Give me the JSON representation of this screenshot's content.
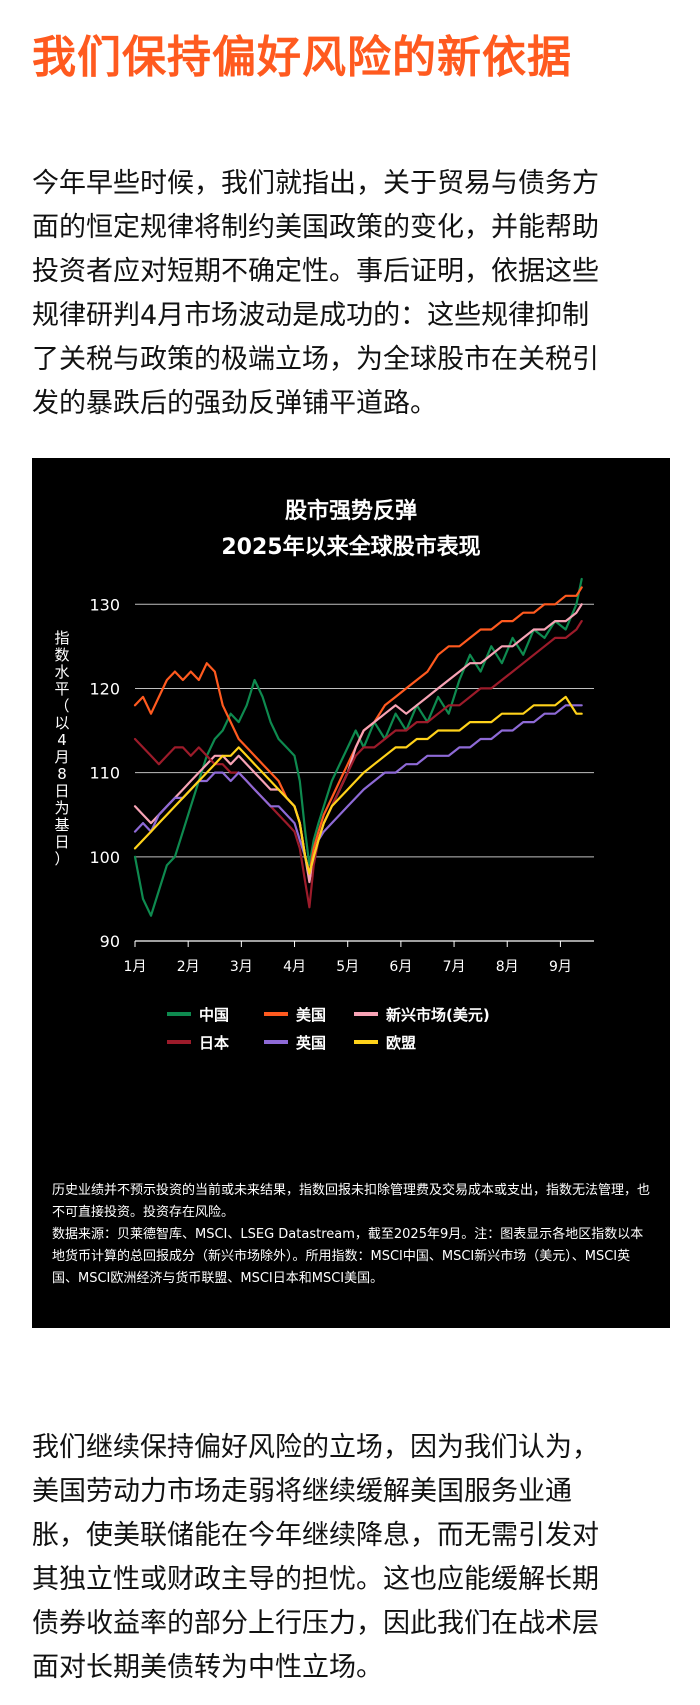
{
  "headline": "我们保持偏好风险的新依据",
  "intro_lines": [
    "今年早些时候，我们就指出，关于贸易与债务方",
    "面的恒定规律将制约美国政策的变化，并能帮助",
    "投资者应对短期不确定性。事后证明，依据这些",
    "规律研判4月市场波动是成功的：这些规律抑制",
    "了关税与政策的极端立场，为全球股市在关税引",
    "发的暴跌后的强劲反弹铺平道路。"
  ],
  "chart_data": {
    "type": "line",
    "title": "股市强势反弹",
    "subtitle": "2025年以来全球股市表现",
    "ylabel": "指数水平（以4月8日为基日）",
    "ylim": [
      90,
      133
    ],
    "xlim": [
      0,
      8.5
    ],
    "yticks": [
      90,
      100,
      110,
      120,
      130
    ],
    "xtick_labels": [
      "1月",
      "2月",
      "3月",
      "4月",
      "5月",
      "6月",
      "7月",
      "8月",
      "9月"
    ],
    "legend_position": "bottom",
    "series": [
      {
        "name": "中国",
        "color": "#0e8a4f",
        "x": [
          0,
          0.15,
          0.3,
          0.45,
          0.6,
          0.75,
          0.9,
          1.05,
          1.2,
          1.35,
          1.5,
          1.65,
          1.8,
          1.95,
          2.1,
          2.25,
          2.4,
          2.55,
          2.7,
          2.85,
          3.0,
          3.1,
          3.2,
          3.28,
          3.36,
          3.45,
          3.55,
          3.7,
          3.85,
          4.0,
          4.15,
          4.3,
          4.5,
          4.7,
          4.9,
          5.1,
          5.3,
          5.5,
          5.7,
          5.9,
          6.1,
          6.3,
          6.5,
          6.7,
          6.9,
          7.1,
          7.3,
          7.5,
          7.7,
          7.9,
          8.1,
          8.3,
          8.4
        ],
        "values": [
          100,
          95,
          93,
          96,
          99,
          100,
          103,
          106,
          109,
          112,
          114,
          115,
          117,
          116,
          118,
          121,
          119,
          116,
          114,
          113,
          112,
          109,
          103,
          99,
          102,
          104,
          106,
          109,
          111,
          113,
          115,
          113,
          116,
          114,
          117,
          115,
          118,
          116,
          119,
          117,
          121,
          124,
          122,
          125,
          123,
          126,
          124,
          127,
          126,
          128,
          127,
          130,
          133
        ]
      },
      {
        "name": "美国",
        "color": "#ff5a1f",
        "x": [
          0,
          0.15,
          0.3,
          0.45,
          0.6,
          0.75,
          0.9,
          1.05,
          1.2,
          1.35,
          1.5,
          1.65,
          1.8,
          1.95,
          2.1,
          2.25,
          2.4,
          2.55,
          2.7,
          2.85,
          3.0,
          3.1,
          3.2,
          3.28,
          3.36,
          3.45,
          3.55,
          3.7,
          3.85,
          4.0,
          4.15,
          4.3,
          4.5,
          4.7,
          4.9,
          5.1,
          5.3,
          5.5,
          5.7,
          5.9,
          6.1,
          6.3,
          6.5,
          6.7,
          6.9,
          7.1,
          7.3,
          7.5,
          7.7,
          7.9,
          8.1,
          8.3,
          8.4
        ],
        "values": [
          118,
          119,
          117,
          119,
          121,
          122,
          121,
          122,
          121,
          123,
          122,
          118,
          116,
          114,
          113,
          112,
          111,
          110,
          109,
          107,
          106,
          104,
          100,
          98,
          101,
          103,
          105,
          107,
          109,
          111,
          113,
          115,
          116,
          118,
          119,
          120,
          121,
          122,
          124,
          125,
          125,
          126,
          127,
          127,
          128,
          128,
          129,
          129,
          130,
          130,
          131,
          131,
          132
        ]
      },
      {
        "name": "新兴市场(美元)",
        "color": "#f7a3b5",
        "x": [
          0,
          0.15,
          0.3,
          0.45,
          0.6,
          0.75,
          0.9,
          1.05,
          1.2,
          1.35,
          1.5,
          1.65,
          1.8,
          1.95,
          2.1,
          2.25,
          2.4,
          2.55,
          2.7,
          2.85,
          3.0,
          3.1,
          3.2,
          3.28,
          3.36,
          3.45,
          3.55,
          3.7,
          3.85,
          4.0,
          4.15,
          4.3,
          4.5,
          4.7,
          4.9,
          5.1,
          5.3,
          5.5,
          5.7,
          5.9,
          6.1,
          6.3,
          6.5,
          6.7,
          6.9,
          7.1,
          7.3,
          7.5,
          7.7,
          7.9,
          8.1,
          8.3,
          8.4
        ],
        "values": [
          106,
          105,
          104,
          105,
          106,
          107,
          108,
          109,
          110,
          111,
          112,
          112,
          111,
          112,
          111,
          110,
          109,
          108,
          108,
          107,
          106,
          104,
          100,
          97,
          100,
          102,
          104,
          106,
          108,
          110,
          113,
          115,
          116,
          117,
          118,
          117,
          118,
          119,
          120,
          121,
          122,
          123,
          123,
          124,
          125,
          125,
          126,
          127,
          127,
          128,
          128,
          129,
          130
        ]
      },
      {
        "name": "日本",
        "color": "#9c1b2a",
        "x": [
          0,
          0.15,
          0.3,
          0.45,
          0.6,
          0.75,
          0.9,
          1.05,
          1.2,
          1.35,
          1.5,
          1.65,
          1.8,
          1.95,
          2.1,
          2.25,
          2.4,
          2.55,
          2.7,
          2.85,
          3.0,
          3.1,
          3.2,
          3.28,
          3.36,
          3.45,
          3.55,
          3.7,
          3.85,
          4.0,
          4.15,
          4.3,
          4.5,
          4.7,
          4.9,
          5.1,
          5.3,
          5.5,
          5.7,
          5.9,
          6.1,
          6.3,
          6.5,
          6.7,
          6.9,
          7.1,
          7.3,
          7.5,
          7.7,
          7.9,
          8.1,
          8.3,
          8.4
        ],
        "values": [
          114,
          113,
          112,
          111,
          112,
          113,
          113,
          112,
          113,
          112,
          111,
          111,
          110,
          110,
          109,
          108,
          107,
          106,
          105,
          104,
          103,
          101,
          97,
          94,
          99,
          102,
          104,
          106,
          108,
          110,
          112,
          113,
          113,
          114,
          115,
          115,
          116,
          116,
          117,
          118,
          118,
          119,
          120,
          120,
          121,
          122,
          123,
          124,
          125,
          126,
          126,
          127,
          128
        ]
      },
      {
        "name": "英国",
        "color": "#8e6ad6",
        "x": [
          0,
          0.15,
          0.3,
          0.45,
          0.6,
          0.75,
          0.9,
          1.05,
          1.2,
          1.35,
          1.5,
          1.65,
          1.8,
          1.95,
          2.1,
          2.25,
          2.4,
          2.55,
          2.7,
          2.85,
          3.0,
          3.1,
          3.2,
          3.28,
          3.36,
          3.45,
          3.55,
          3.7,
          3.85,
          4.0,
          4.15,
          4.3,
          4.5,
          4.7,
          4.9,
          5.1,
          5.3,
          5.5,
          5.7,
          5.9,
          6.1,
          6.3,
          6.5,
          6.7,
          6.9,
          7.1,
          7.3,
          7.5,
          7.7,
          7.9,
          8.1,
          8.3,
          8.4
        ],
        "values": [
          103,
          104,
          103,
          105,
          106,
          107,
          107,
          108,
          109,
          109,
          110,
          110,
          109,
          110,
          109,
          108,
          107,
          106,
          106,
          105,
          104,
          102,
          100,
          98,
          100,
          102,
          103,
          104,
          105,
          106,
          107,
          108,
          109,
          110,
          110,
          111,
          111,
          112,
          112,
          112,
          113,
          113,
          114,
          114,
          115,
          115,
          116,
          116,
          117,
          117,
          118,
          118,
          118
        ]
      },
      {
        "name": "欧盟",
        "color": "#ffd21a",
        "x": [
          0,
          0.15,
          0.3,
          0.45,
          0.6,
          0.75,
          0.9,
          1.05,
          1.2,
          1.35,
          1.5,
          1.65,
          1.8,
          1.95,
          2.1,
          2.25,
          2.4,
          2.55,
          2.7,
          2.85,
          3.0,
          3.1,
          3.2,
          3.28,
          3.36,
          3.45,
          3.55,
          3.7,
          3.85,
          4.0,
          4.15,
          4.3,
          4.5,
          4.7,
          4.9,
          5.1,
          5.3,
          5.5,
          5.7,
          5.9,
          6.1,
          6.3,
          6.5,
          6.7,
          6.9,
          7.1,
          7.3,
          7.5,
          7.7,
          7.9,
          8.1,
          8.3,
          8.4
        ],
        "values": [
          101,
          102,
          103,
          104,
          105,
          106,
          107,
          108,
          109,
          110,
          111,
          112,
          112,
          113,
          112,
          111,
          110,
          109,
          108,
          107,
          106,
          104,
          100,
          98,
          100,
          102,
          104,
          106,
          107,
          108,
          109,
          110,
          111,
          112,
          113,
          113,
          114,
          114,
          115,
          115,
          115,
          116,
          116,
          116,
          117,
          117,
          117,
          118,
          118,
          118,
          119,
          117,
          117
        ]
      }
    ]
  },
  "footnote_lines": [
    "历史业绩并不预示投资的当前或未来结果，指数回报未扣除管理费及交易成本或支出，指数无法管理，也不可直接投资。投资存在风险。",
    "数据来源：贝莱德智库、MSCI、LSEG Datastream，截至2025年9月。注：图表显示各地区指数以本地货币计算的总回报成分（新兴市场除外）。所用指数：MSCI中国、MSCI新兴市场（美元）、MSCI英国、MSCI欧洲经济与货币联盟、MSCI日本和MSCI美国。"
  ],
  "closing_lines": [
    "我们继续保持偏好风险的立场，因为我们认为，",
    "美国劳动力市场走弱将继续缓解美国服务业通",
    "胀，使美联储能在今年继续降息，而无需引发对",
    "其独立性或财政主导的担忧。这也应能缓解长期",
    "债券收益率的部分上行压力，因此我们在战术层",
    "面对长期美债转为中性立场。"
  ]
}
